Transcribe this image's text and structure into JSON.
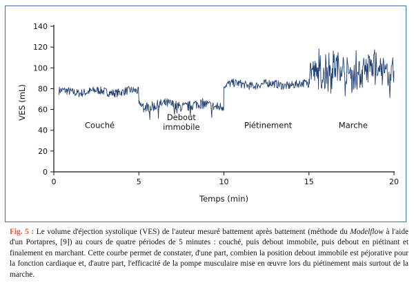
{
  "chart_data": {
    "type": "line",
    "xlabel": "Temps (min)",
    "ylabel": "VES (mL)",
    "xlim": [
      0,
      20
    ],
    "ylim": [
      0,
      140
    ],
    "xticks": [
      0,
      5,
      10,
      15,
      20
    ],
    "yticks": [
      0,
      20,
      40,
      60,
      80,
      100,
      120,
      140
    ],
    "grid": false,
    "series_color": "#1f3f73",
    "annotations": [
      {
        "lines": [
          "Couché"
        ],
        "x": 2.7,
        "y": 42
      },
      {
        "lines": [
          "Debout",
          "immobile"
        ],
        "x": 7.5,
        "y": 45
      },
      {
        "lines": [
          "Piétinement"
        ],
        "x": 12.6,
        "y": 42
      },
      {
        "lines": [
          "Marche"
        ],
        "x": 17.6,
        "y": 42
      }
    ],
    "phases": [
      {
        "name": "Couché",
        "x_start": 0.3,
        "x_end": 5.0,
        "mean": 77,
        "noise": 4
      },
      {
        "name": "Debout immobile",
        "x_start": 5.0,
        "x_end": 10.0,
        "mean": 64,
        "noise": 5
      },
      {
        "name": "Piétinement",
        "x_start": 10.0,
        "x_end": 15.0,
        "mean": 84,
        "noise": 4
      },
      {
        "name": "Marche",
        "x_start": 15.0,
        "x_end": 20.0,
        "mean": 97,
        "noise": 14
      }
    ],
    "range": {
      "min": 50,
      "max": 127
    }
  },
  "caption": {
    "label": "Fig. 5 :",
    "text_before_em": " Le volume d'éjection systolique (VES) de l'auteur mesuré battement après battement (méthode du ",
    "em": "Modelflow",
    "text_after_em": " à l'aide d'un Portapres, [9]) au cours de quatre périodes de 5 minutes : couché, puis debout immobile, puis debout en piétinant et finalement en marchant. Cette courbe permet de constater, d'une part, combien la position debout immobile est péjorative pour la fonction cardiaque et, d'autre part, l'efficacité de la pompe musculaire mise en œuvre lors du piétinement mais surtout de la marche."
  }
}
